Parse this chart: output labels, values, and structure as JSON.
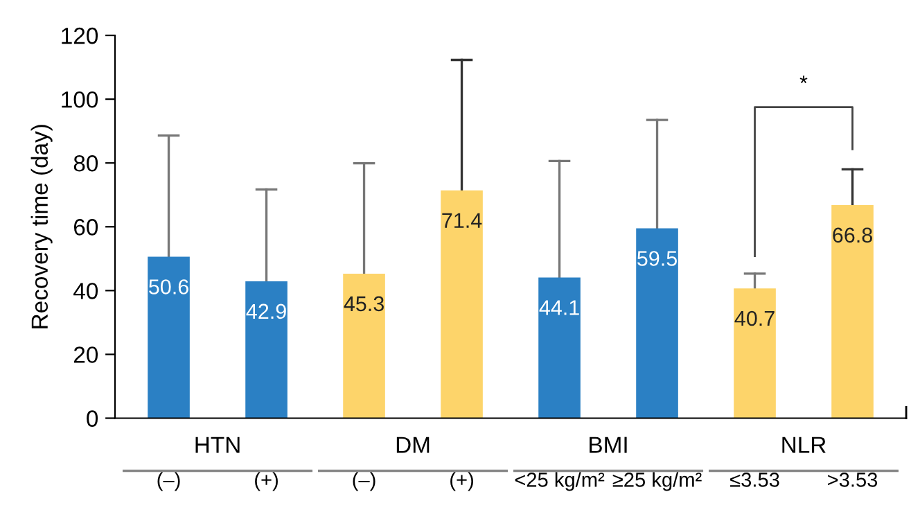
{
  "chart_data": {
    "type": "bar",
    "ylabel": "Recovery time (day)",
    "categories": [
      "(–)",
      "(+)",
      "(–)",
      "(+)",
      "<25 kg/m²",
      "≥25 kg/m²",
      "≤3.53",
      ">3.53"
    ],
    "values": [
      50.6,
      42.9,
      45.3,
      71.4,
      44.1,
      59.5,
      40.7,
      66.8
    ],
    "colors": [
      "#2b80c4",
      "#2b80c4",
      "#fdd46a",
      "#fdd46a",
      "#2b80c4",
      "#2b80c4",
      "#fdd46a",
      "#fdd46a"
    ],
    "errors": [
      [
        50.6,
        88.6
      ],
      [
        42.9,
        71.7
      ],
      [
        45.3,
        79.9
      ],
      [
        71.4,
        112.3
      ],
      [
        44.1,
        80.6
      ],
      [
        59.5,
        93.5
      ],
      [
        40.7,
        45.3
      ],
      [
        66.8,
        78.0
      ]
    ],
    "data_labels": true,
    "annotations": [
      "HTN",
      "DM",
      "BMI",
      "NLR",
      "*"
    ],
    "ylim": [
      0,
      120
    ],
    "yticks": [
      0,
      20,
      40,
      60,
      80,
      100,
      120
    ],
    "grid": false,
    "legend": false
  }
}
